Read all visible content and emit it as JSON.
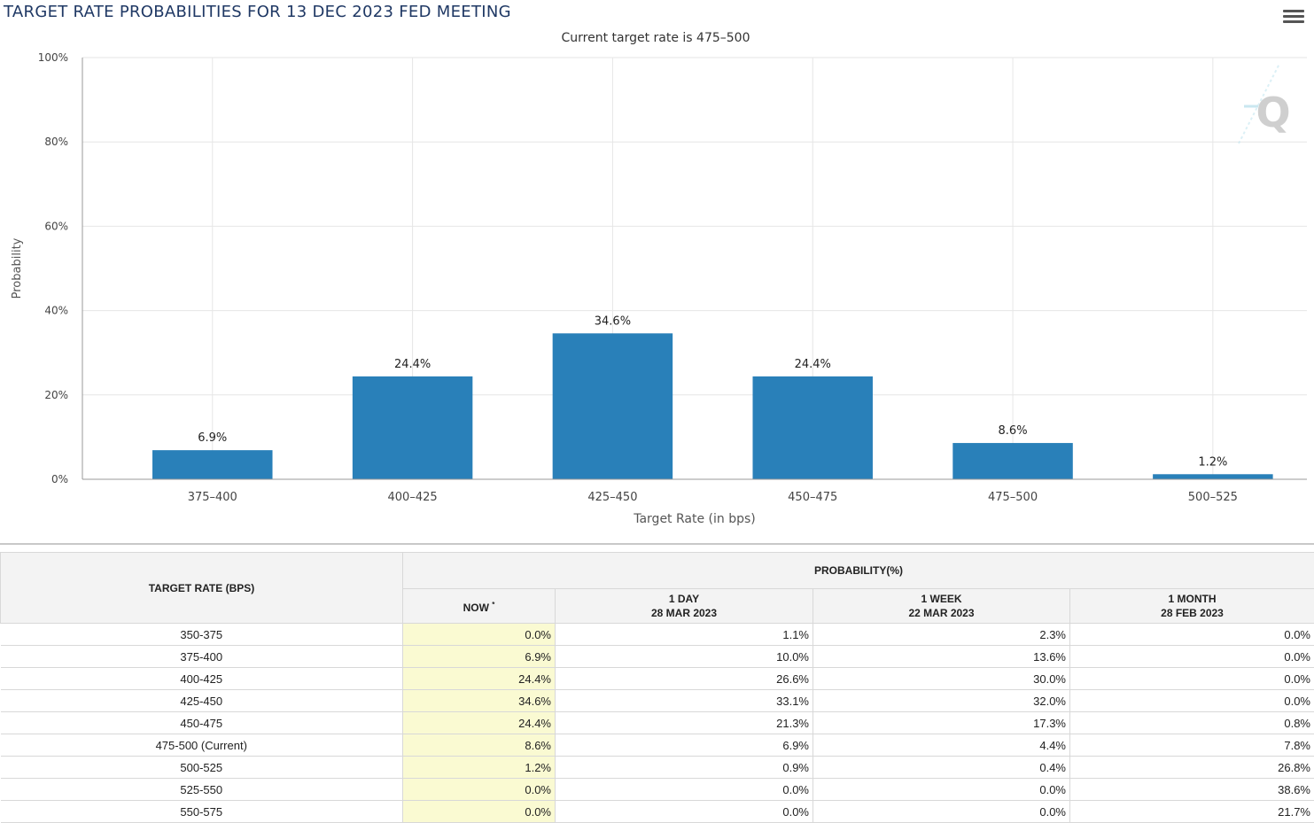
{
  "chart_data": {
    "type": "bar",
    "title": "TARGET RATE PROBABILITIES FOR 13 DEC 2023 FED MEETING",
    "subtitle": "Current target rate is 475–500",
    "xlabel": "Target Rate (in bps)",
    "ylabel": "Probability",
    "categories": [
      "375–400",
      "400–425",
      "425–450",
      "450–475",
      "475–500",
      "500–525"
    ],
    "values": [
      6.9,
      24.4,
      34.6,
      24.4,
      8.6,
      1.2
    ],
    "data_labels": [
      "6.9%",
      "24.4%",
      "34.6%",
      "24.4%",
      "8.6%",
      "1.2%"
    ],
    "ylim": [
      0,
      100
    ],
    "yticks": [
      0,
      20,
      40,
      60,
      80,
      100
    ],
    "ytick_labels": [
      "0%",
      "20%",
      "40%",
      "60%",
      "80%",
      "100%"
    ],
    "grid": true,
    "legend": "none",
    "bar_color": "#2980b9"
  },
  "menu_icon": "hamburger-menu-icon",
  "watermark": "Q",
  "table": {
    "target_header": "TARGET RATE (BPS)",
    "probability_header": "PROBABILITY(%)",
    "columns": [
      {
        "line1": "NOW",
        "sup": "*",
        "line2": ""
      },
      {
        "line1": "1 DAY",
        "line2": "28 MAR 2023"
      },
      {
        "line1": "1 WEEK",
        "line2": "22 MAR 2023"
      },
      {
        "line1": "1 MONTH",
        "line2": "28 FEB 2023"
      }
    ],
    "rows": [
      {
        "rate": "350-375",
        "now": "0.0%",
        "day": "1.1%",
        "week": "2.3%",
        "month": "0.0%"
      },
      {
        "rate": "375-400",
        "now": "6.9%",
        "day": "10.0%",
        "week": "13.6%",
        "month": "0.0%"
      },
      {
        "rate": "400-425",
        "now": "24.4%",
        "day": "26.6%",
        "week": "30.0%",
        "month": "0.0%"
      },
      {
        "rate": "425-450",
        "now": "34.6%",
        "day": "33.1%",
        "week": "32.0%",
        "month": "0.0%"
      },
      {
        "rate": "450-475",
        "now": "24.4%",
        "day": "21.3%",
        "week": "17.3%",
        "month": "0.8%"
      },
      {
        "rate": "475-500 (Current)",
        "now": "8.6%",
        "day": "6.9%",
        "week": "4.4%",
        "month": "7.8%"
      },
      {
        "rate": "500-525",
        "now": "1.2%",
        "day": "0.9%",
        "week": "0.4%",
        "month": "26.8%"
      },
      {
        "rate": "525-550",
        "now": "0.0%",
        "day": "0.0%",
        "week": "0.0%",
        "month": "38.6%"
      },
      {
        "rate": "550-575",
        "now": "0.0%",
        "day": "0.0%",
        "week": "0.0%",
        "month": "21.7%"
      }
    ]
  }
}
